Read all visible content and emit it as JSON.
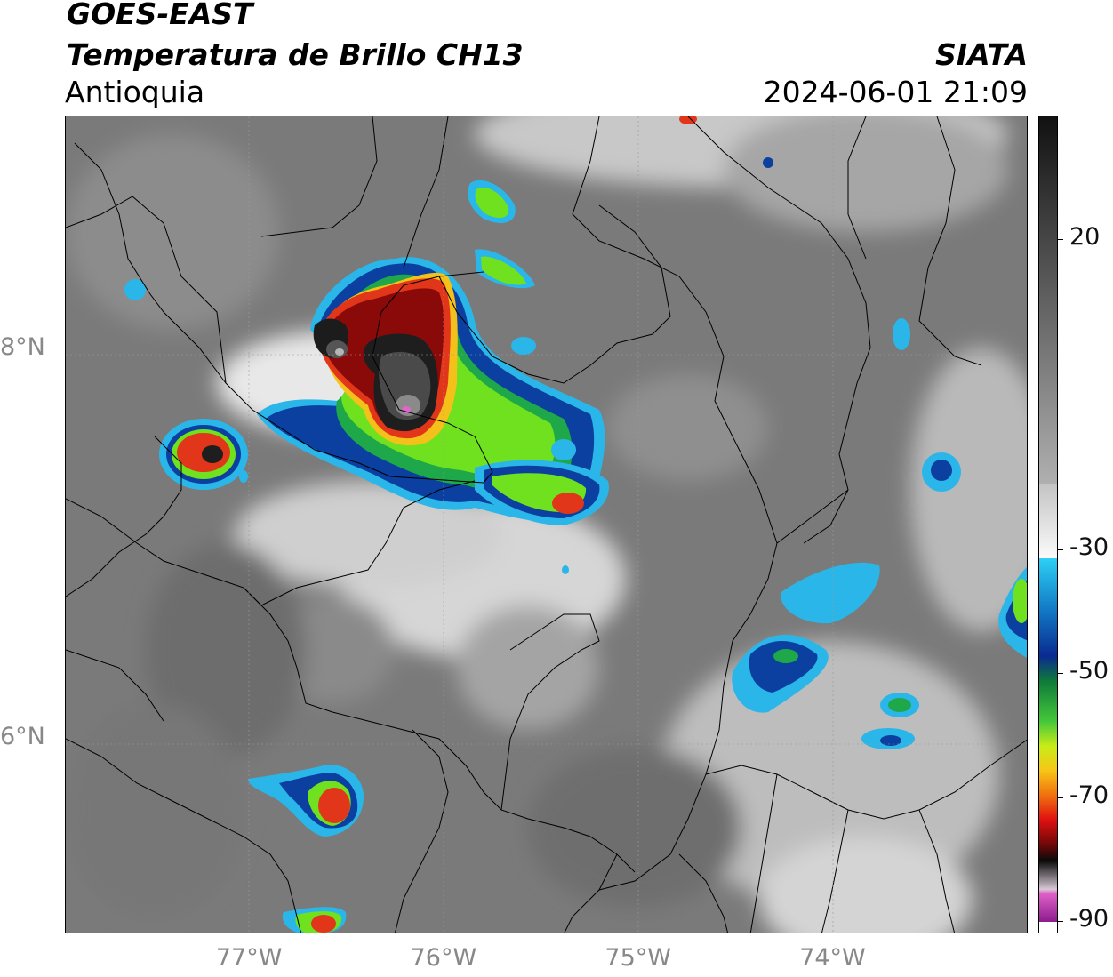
{
  "header": {
    "satellite": "GOES-EAST",
    "product": "Temperatura de Brillo CH13",
    "region": "Antioquia",
    "agency": "SIATA",
    "timestamp": "2024-06-01 21:09"
  },
  "map": {
    "lon_ticks": [
      "77°W",
      "76°W",
      "75°W",
      "74°W"
    ],
    "lat_ticks": [
      "8°N",
      "6°N"
    ],
    "lon_values": [
      -77,
      -76,
      -75,
      -74
    ],
    "lat_values": [
      8,
      6
    ],
    "lon_range": [
      -77.95,
      -73.0
    ],
    "lat_range": [
      5.0,
      9.2
    ]
  },
  "colorbar": {
    "tick_labels": [
      "20",
      "-30",
      "-50",
      "-70",
      "-90"
    ],
    "tick_values": [
      20,
      -30,
      -50,
      -70,
      -90
    ],
    "range": [
      -92,
      40
    ]
  }
}
